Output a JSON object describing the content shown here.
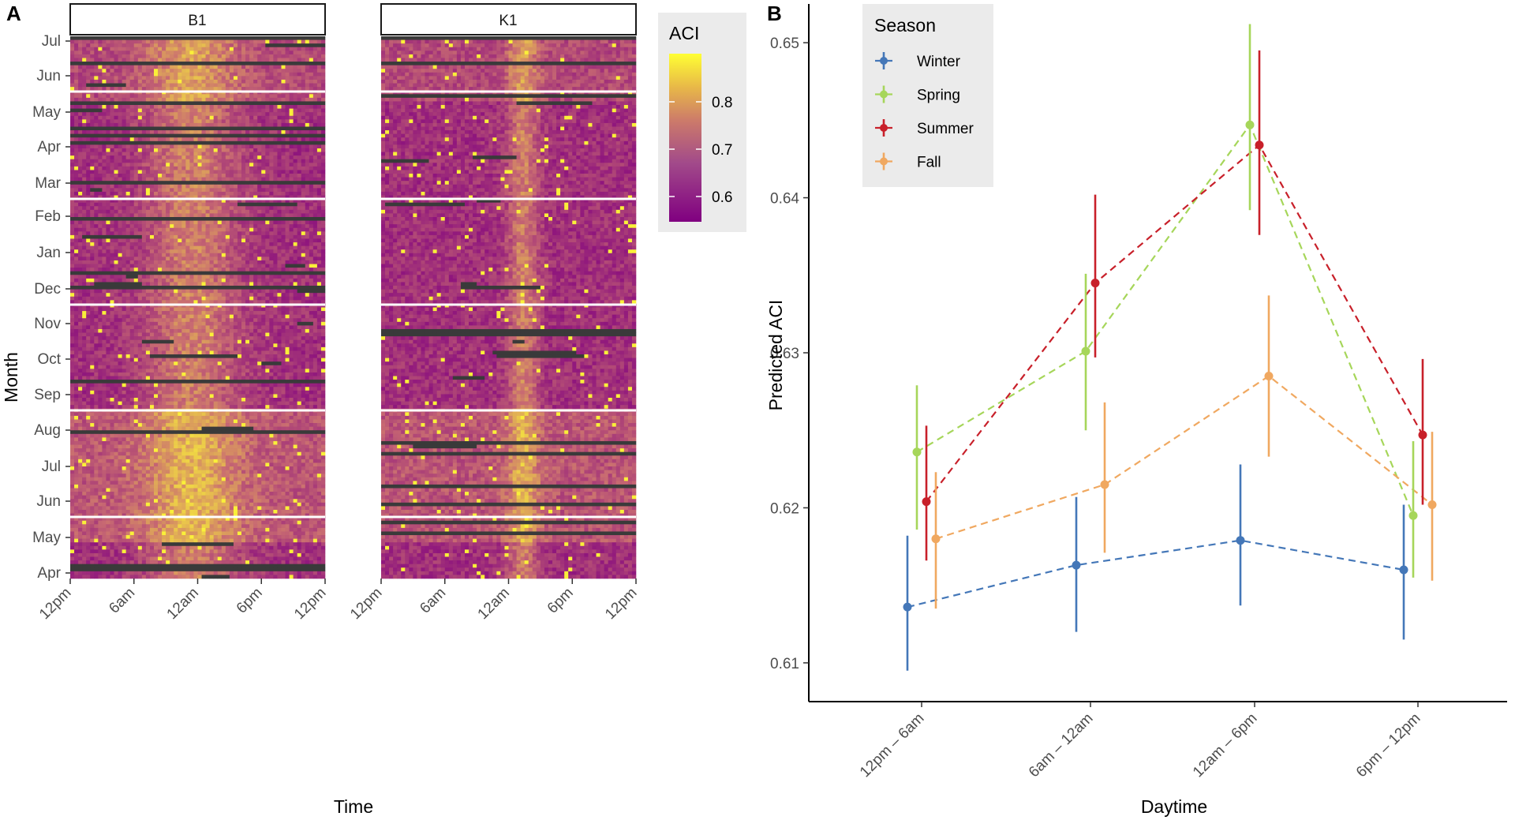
{
  "panel_a": {
    "letter": "A",
    "x_title": "Time",
    "y_title": "Month",
    "legend_title": "ACI",
    "legend_ticks": [
      "0.8",
      "0.7",
      "0.6"
    ]
  },
  "panel_b": {
    "letter": "B",
    "x_title": "Daytime",
    "y_title": "Predicted ACI",
    "legend_title": "Season"
  },
  "colors": {
    "winter": "#4477b8",
    "spring": "#a6d65a",
    "summer": "#c8202a",
    "fall": "#f0a860",
    "heat_low": "#800080",
    "heat_mid": "#c86a72",
    "heat_high": "#ffff33",
    "missing": "#3a3a3a"
  },
  "chart_data": [
    {
      "type": "heatmap",
      "panel": "A",
      "facets": [
        "B1",
        "K1"
      ],
      "x_tick_labels": [
        "12pm",
        "6am",
        "12am",
        "6pm",
        "12pm"
      ],
      "y_tick_labels": [
        "Jul",
        "Jun",
        "May",
        "Apr",
        "Mar",
        "Feb",
        "Jan",
        "Dec",
        "Nov",
        "Oct",
        "Sep",
        "Aug",
        "Jul",
        "Jun",
        "May",
        "Apr"
      ],
      "xlabel": "Time",
      "ylabel": "Month",
      "legend": {
        "title": "ACI",
        "range": [
          0.55,
          0.9
        ],
        "ticks": [
          0.8,
          0.7,
          0.6
        ]
      }
    },
    {
      "type": "line",
      "panel": "B",
      "categories": [
        "12pm – 6am",
        "6am – 12am",
        "12am – 6pm",
        "6pm – 12pm"
      ],
      "xlabel": "Daytime",
      "ylabel": "Predicted ACI",
      "ylim": [
        0.6075,
        0.6525
      ],
      "y_ticks": [
        0.61,
        0.62,
        0.63,
        0.64,
        0.65
      ],
      "legend_title": "Season",
      "series": [
        {
          "name": "Winter",
          "color_key": "winter",
          "values": [
            0.6136,
            0.6163,
            0.6179,
            0.616
          ],
          "lower": [
            0.6095,
            0.612,
            0.6137,
            0.6115
          ],
          "upper": [
            0.6182,
            0.6207,
            0.6228,
            0.6202
          ]
        },
        {
          "name": "Spring",
          "color_key": "spring",
          "values": [
            0.6236,
            0.6301,
            0.6447,
            0.6195
          ],
          "lower": [
            0.6186,
            0.625,
            0.6392,
            0.6155
          ],
          "upper": [
            0.6279,
            0.6351,
            0.6512,
            0.6243
          ]
        },
        {
          "name": "Summer",
          "color_key": "summer",
          "values": [
            0.6204,
            0.6345,
            0.6434,
            0.6247
          ],
          "lower": [
            0.6166,
            0.6297,
            0.6376,
            0.6202
          ],
          "upper": [
            0.6253,
            0.6402,
            0.6495,
            0.6296
          ]
        },
        {
          "name": "Fall",
          "color_key": "fall",
          "values": [
            0.618,
            0.6215,
            0.6285,
            0.6202
          ],
          "lower": [
            0.6135,
            0.6171,
            0.6233,
            0.6153
          ],
          "upper": [
            0.6223,
            0.6268,
            0.6337,
            0.6249
          ]
        }
      ]
    }
  ]
}
